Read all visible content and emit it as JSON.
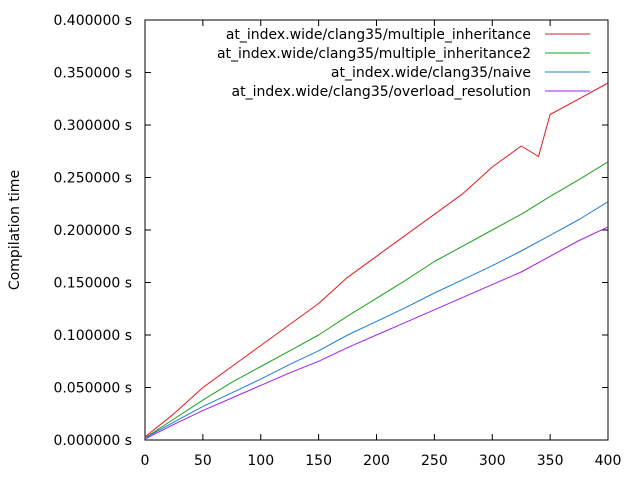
{
  "chart_data": {
    "type": "line",
    "title": "",
    "xlabel": "",
    "ylabel": "Compilation time",
    "xlim": [
      0,
      400
    ],
    "ylim": [
      0,
      0.4
    ],
    "x_ticks": [
      0,
      50,
      100,
      150,
      200,
      250,
      300,
      350,
      400
    ],
    "x_tick_labels": [
      "0",
      "50",
      "100",
      "150",
      "200",
      "250",
      "300",
      "350",
      "400"
    ],
    "y_ticks": [
      0,
      0.05,
      0.1,
      0.15,
      0.2,
      0.25,
      0.3,
      0.35,
      0.4
    ],
    "y_tick_labels": [
      "0.000000 s",
      "0.050000 s",
      "0.100000 s",
      "0.150000 s",
      "0.200000 s",
      "0.250000 s",
      "0.300000 s",
      "0.350000 s",
      "0.400000 s"
    ],
    "grid": false,
    "legend_position": "top-right",
    "series": [
      {
        "name": "at_index.wide/clang35/multiple_inheritance",
        "color": "#e41a1c",
        "x": [
          0,
          25,
          50,
          75,
          100,
          125,
          150,
          175,
          200,
          225,
          250,
          275,
          300,
          325,
          340,
          350,
          375,
          400
        ],
        "y": [
          0.003,
          0.025,
          0.05,
          0.07,
          0.09,
          0.11,
          0.13,
          0.155,
          0.175,
          0.195,
          0.215,
          0.235,
          0.26,
          0.28,
          0.27,
          0.31,
          0.325,
          0.34
        ]
      },
      {
        "name": "at_index.wide/clang35/multiple_inheritance2",
        "color": "#1aa31a",
        "x": [
          0,
          25,
          50,
          75,
          100,
          125,
          150,
          175,
          200,
          225,
          250,
          275,
          300,
          325,
          350,
          375,
          400
        ],
        "y": [
          0.002,
          0.02,
          0.038,
          0.055,
          0.07,
          0.085,
          0.1,
          0.118,
          0.135,
          0.152,
          0.17,
          0.185,
          0.2,
          0.215,
          0.232,
          0.248,
          0.265
        ]
      },
      {
        "name": "at_index.wide/clang35/naive",
        "color": "#1a7fd4",
        "x": [
          0,
          25,
          50,
          75,
          100,
          125,
          150,
          175,
          200,
          225,
          250,
          275,
          300,
          325,
          350,
          375,
          400
        ],
        "y": [
          0.002,
          0.017,
          0.032,
          0.045,
          0.058,
          0.072,
          0.085,
          0.1,
          0.113,
          0.126,
          0.14,
          0.153,
          0.166,
          0.18,
          0.195,
          0.21,
          0.227
        ]
      },
      {
        "name": "at_index.wide/clang35/overload_resolution",
        "color": "#a020f0",
        "x": [
          0,
          25,
          50,
          75,
          100,
          125,
          150,
          175,
          200,
          225,
          250,
          275,
          300,
          325,
          350,
          375,
          400
        ],
        "y": [
          0.001,
          0.015,
          0.028,
          0.04,
          0.052,
          0.064,
          0.075,
          0.088,
          0.1,
          0.112,
          0.124,
          0.136,
          0.148,
          0.16,
          0.175,
          0.19,
          0.203
        ]
      }
    ]
  }
}
